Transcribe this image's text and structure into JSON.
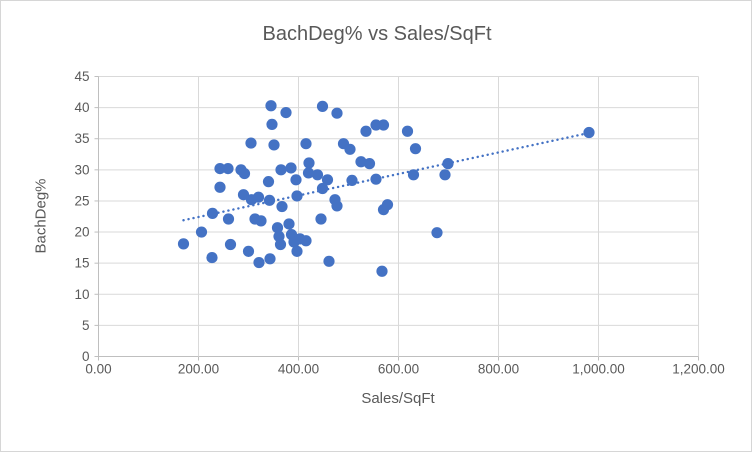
{
  "chart_data": {
    "type": "scatter",
    "title": "BachDeg% vs Sales/SqFt",
    "xlabel": "Sales/SqFt",
    "ylabel": "BachDeg%",
    "xlim": [
      0,
      1200
    ],
    "ylim": [
      0,
      45
    ],
    "grid": true,
    "legend": false,
    "x_ticks": {
      "values": [
        0,
        200,
        400,
        600,
        800,
        1000,
        1200
      ],
      "labels": [
        "0.00",
        "200.00",
        "400.00",
        "600.00",
        "800.00",
        "1,000.00",
        "1,200.00"
      ]
    },
    "y_ticks": {
      "values": [
        0,
        5,
        10,
        15,
        20,
        25,
        30,
        35,
        40,
        45
      ],
      "labels": [
        "0",
        "5",
        "10",
        "15",
        "20",
        "25",
        "30",
        "35",
        "40",
        "45"
      ]
    },
    "colors": {
      "marker": "#4472C4",
      "trendline": "#4472C4",
      "text": "#595959",
      "gridline": "#D9D9D9",
      "axis": "#BFBFBF",
      "border": "#D6D6D6"
    },
    "trendline": {
      "style": "dotted",
      "x": [
        170,
        991
      ],
      "y": [
        21.9,
        36.1
      ]
    },
    "points": [
      [
        345,
        40.3
      ],
      [
        448,
        40.2
      ],
      [
        375,
        39.2
      ],
      [
        477,
        39.1
      ],
      [
        347,
        37.3
      ],
      [
        555,
        37.2
      ],
      [
        570,
        37.2
      ],
      [
        535,
        36.2
      ],
      [
        618,
        36.2
      ],
      [
        981,
        36.0
      ],
      [
        305,
        34.3
      ],
      [
        351,
        34.0
      ],
      [
        415,
        34.2
      ],
      [
        490,
        34.2
      ],
      [
        503,
        33.3
      ],
      [
        634,
        33.4
      ],
      [
        421,
        31.1
      ],
      [
        525,
        31.3
      ],
      [
        542,
        31.0
      ],
      [
        699,
        31.0
      ],
      [
        243,
        30.2
      ],
      [
        259,
        30.2
      ],
      [
        285,
        30.0
      ],
      [
        365,
        30.0
      ],
      [
        385,
        30.3
      ],
      [
        292,
        29.4
      ],
      [
        395,
        28.4
      ],
      [
        420,
        29.5
      ],
      [
        438,
        29.2
      ],
      [
        458,
        28.4
      ],
      [
        507,
        28.3
      ],
      [
        555,
        28.5
      ],
      [
        630,
        29.2
      ],
      [
        693,
        29.2
      ],
      [
        340,
        28.1
      ],
      [
        243,
        27.2
      ],
      [
        448,
        27.0
      ],
      [
        290,
        26.0
      ],
      [
        306,
        25.2
      ],
      [
        320,
        25.6
      ],
      [
        342,
        25.1
      ],
      [
        367,
        24.1
      ],
      [
        397,
        25.8
      ],
      [
        473,
        25.2
      ],
      [
        477,
        24.2
      ],
      [
        578,
        24.4
      ],
      [
        228,
        23.0
      ],
      [
        260,
        22.1
      ],
      [
        313,
        22.1
      ],
      [
        325,
        21.8
      ],
      [
        358,
        20.7
      ],
      [
        381,
        21.3
      ],
      [
        445,
        22.1
      ],
      [
        206,
        20.0
      ],
      [
        677,
        19.9
      ],
      [
        570,
        23.6
      ],
      [
        170,
        18.1
      ],
      [
        227,
        15.9
      ],
      [
        264,
        18.0
      ],
      [
        300,
        16.9
      ],
      [
        321,
        15.1
      ],
      [
        343,
        15.7
      ],
      [
        361,
        19.3
      ],
      [
        364,
        18.0
      ],
      [
        386,
        19.6
      ],
      [
        391,
        18.4
      ],
      [
        397,
        16.9
      ],
      [
        403,
        18.9
      ],
      [
        415,
        18.6
      ],
      [
        461,
        15.3
      ],
      [
        567,
        13.7
      ]
    ]
  }
}
